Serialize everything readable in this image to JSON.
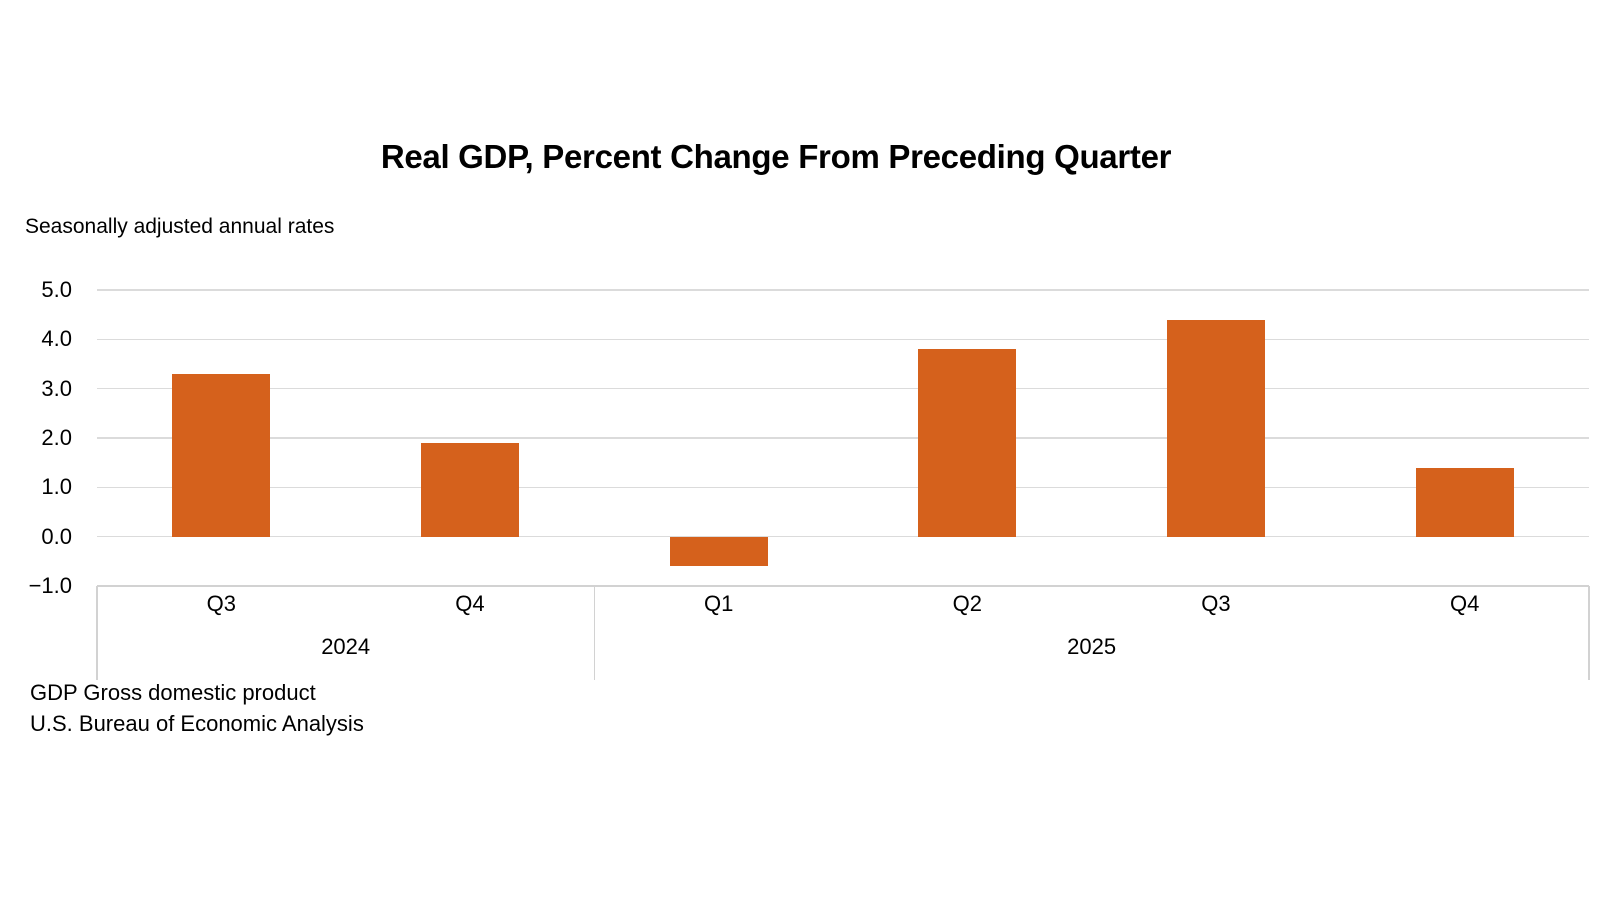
{
  "chart_data": {
    "type": "bar",
    "title": "Real GDP, Percent Change From Preceding Quarter",
    "subtitle": "Seasonally adjusted annual rates",
    "categories": [
      "Q3",
      "Q4",
      "Q1",
      "Q2",
      "Q3",
      "Q4"
    ],
    "year_groups": [
      {
        "label": "2024",
        "count": 2
      },
      {
        "label": "2025",
        "count": 4
      }
    ],
    "values": [
      3.3,
      1.9,
      -0.6,
      3.8,
      4.4,
      1.4
    ],
    "ylim": [
      -1.0,
      5.0
    ],
    "y_ticks": [
      5.0,
      4.0,
      3.0,
      2.0,
      1.0,
      0.0,
      -1.0
    ],
    "y_tick_labels": [
      "5.0",
      "4.0",
      "3.0",
      "2.0",
      "1.0",
      "0.0",
      "−1.0"
    ],
    "bar_color": "#d5611c",
    "gridline_color": "#dbdbdb",
    "grid": true,
    "legend": "none"
  },
  "footnotes": [
    "GDP Gross domestic product",
    "U.S. Bureau of Economic Analysis"
  ]
}
